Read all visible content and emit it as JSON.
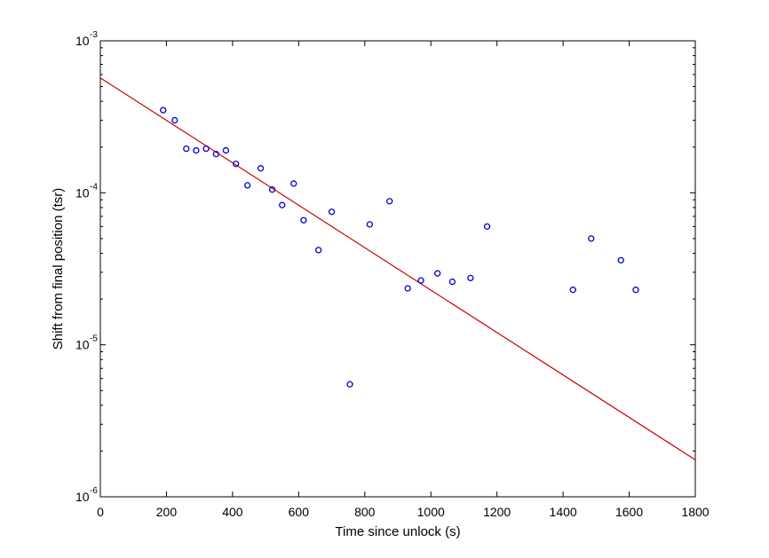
{
  "chart_data": {
    "type": "scatter",
    "title": "",
    "xlabel": "Time since unlock (s)",
    "ylabel": "Shift from final position (tsr)",
    "xlim": [
      0,
      1800
    ],
    "ylim": [
      1e-06,
      0.001
    ],
    "yscale": "log",
    "xticks": [
      0,
      200,
      400,
      600,
      800,
      1000,
      1200,
      1400,
      1600,
      1800
    ],
    "xtick_labels": [
      "0",
      "200",
      "400",
      "600",
      "800",
      "1000",
      "1200",
      "1400",
      "1600",
      "1800"
    ],
    "yticks": [
      1e-06,
      1e-05,
      0.0001,
      0.001
    ],
    "ytick_labels": [
      {
        "base": "10",
        "exp": "-6"
      },
      {
        "base": "10",
        "exp": "-5"
      },
      {
        "base": "10",
        "exp": "-4"
      },
      {
        "base": "10",
        "exp": "-3"
      }
    ],
    "grid": false,
    "series": [
      {
        "type": "scatter",
        "color": "#0000cc",
        "marker": "circle-open",
        "x": [
          190,
          225,
          260,
          290,
          320,
          350,
          380,
          410,
          445,
          485,
          520,
          550,
          585,
          615,
          700,
          660,
          755,
          815,
          875,
          930,
          970,
          1020,
          1065,
          1120,
          1170,
          1430,
          1485,
          1575,
          1620
        ],
        "y": [
          0.00035,
          0.0003,
          0.000195,
          0.00019,
          0.000195,
          0.00018,
          0.00019,
          0.000155,
          0.000112,
          0.000145,
          0.000105,
          8.3e-05,
          0.000115,
          6.6e-05,
          7.5e-05,
          4.2e-05,
          5.5e-06,
          6.2e-05,
          8.8e-05,
          2.35e-05,
          2.65e-05,
          2.95e-05,
          2.6e-05,
          2.75e-05,
          6e-05,
          2.3e-05,
          5e-05,
          3.6e-05,
          2.3e-05
        ]
      },
      {
        "type": "line",
        "color": "#cc0000",
        "x": [
          0,
          1800
        ],
        "y": [
          0.00057,
          1.75e-06
        ]
      }
    ]
  }
}
